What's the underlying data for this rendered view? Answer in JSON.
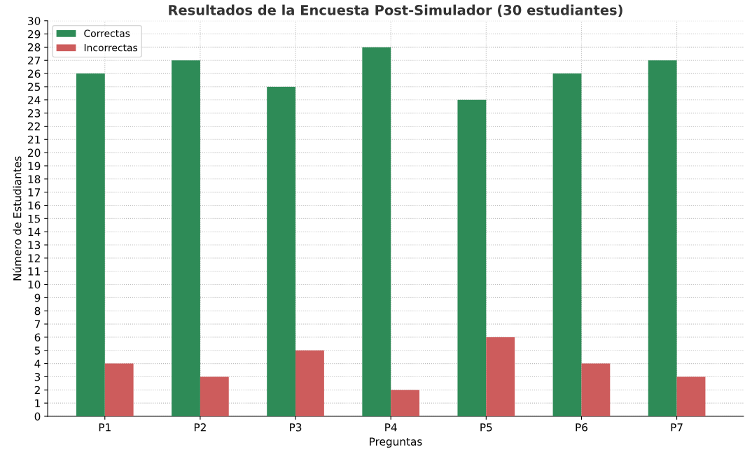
{
  "chart_data": {
    "type": "bar",
    "title": "Resultados de la Encuesta Post-Simulador (30 estudiantes)",
    "xlabel": "Preguntas",
    "ylabel": "Número de Estudiantes",
    "categories": [
      "P1",
      "P2",
      "P3",
      "P4",
      "P5",
      "P6",
      "P7"
    ],
    "series": [
      {
        "name": "Correctas",
        "color": "#2e8b57",
        "values": [
          26,
          27,
          25,
          28,
          24,
          26,
          27
        ]
      },
      {
        "name": "Incorrectas",
        "color": "#cd5c5c",
        "values": [
          4,
          3,
          5,
          2,
          6,
          4,
          3
        ]
      }
    ],
    "ylim": [
      0,
      30
    ],
    "yticks": [
      0,
      1,
      2,
      3,
      4,
      5,
      6,
      7,
      8,
      9,
      10,
      11,
      12,
      13,
      14,
      15,
      16,
      17,
      18,
      19,
      20,
      21,
      22,
      23,
      24,
      25,
      26,
      27,
      28,
      29,
      30
    ],
    "grid": true,
    "legend": "top left"
  }
}
